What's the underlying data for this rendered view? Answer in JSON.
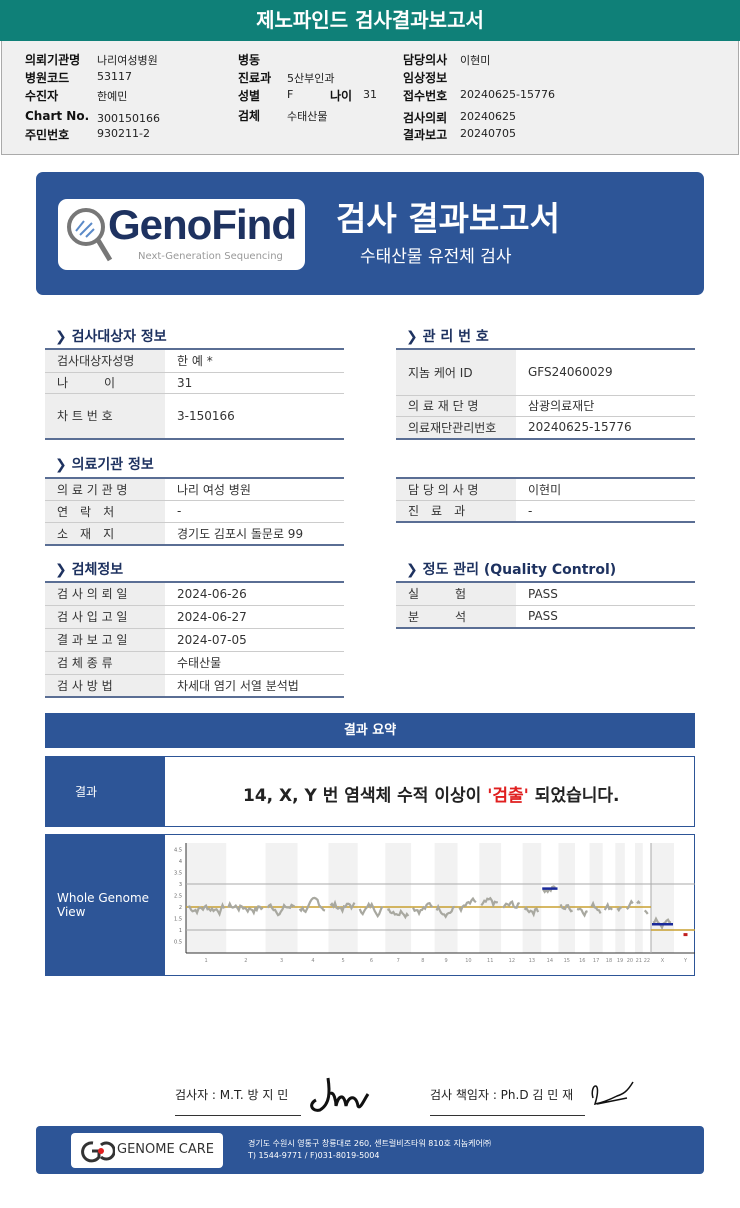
{
  "top_title": "제노파인드 검사결과보고서",
  "info": {
    "col1": [
      [
        "의뢰기관명",
        "나리여성병원"
      ],
      [
        "병원코드",
        "53117"
      ],
      [
        "수진자",
        "한예민"
      ],
      [
        "Chart No.",
        "300150166"
      ],
      [
        "주민번호",
        "930211-2"
      ]
    ],
    "col2": [
      [
        "병동",
        ""
      ],
      [
        "진료과",
        "5산부인과"
      ],
      [
        "성별",
        "F"
      ],
      [
        "검체",
        "수태산물"
      ]
    ],
    "age_label": "나이",
    "age_value": "31",
    "col3": [
      [
        "담당의사",
        "이현미"
      ],
      [
        "임상정보",
        ""
      ],
      [
        "접수번호",
        "20240625-15776"
      ],
      [
        "검사의뢰",
        "20240625"
      ],
      [
        "결과보고",
        "20240705"
      ]
    ]
  },
  "banner": {
    "logo": "GenoFind",
    "logo_sub": "Next-Generation Sequencing",
    "title": "검사 결과보고서",
    "subtitle": "수태산물 유전체 검사"
  },
  "sections": {
    "subject": {
      "title": "검사대상자 정보",
      "rows": [
        [
          "검사대상자성명",
          "한 예 *"
        ],
        [
          "나　　　이",
          "31"
        ],
        [
          "차 트 번 호",
          "3-150166"
        ]
      ]
    },
    "mgmt": {
      "title": "관 리 번 호",
      "rows": [
        [
          "지놈  케어 ID",
          "GFS24060029"
        ],
        [
          "의 료 재 단 명",
          "삼광의료재단"
        ],
        [
          "의료재단관리번호",
          "20240625-15776"
        ]
      ]
    },
    "hospital": {
      "title": "의료기관  정보",
      "rows": [
        [
          "의 료 기 관 명",
          "나리 여성 병원"
        ],
        [
          "연　락　처",
          "-"
        ],
        [
          "소　재　지",
          "경기도 김포시 돌문로 99"
        ]
      ]
    },
    "doctor": {
      "rows": [
        [
          "담 당 의 사 명",
          "이현미"
        ],
        [
          "진　료　과",
          "-"
        ]
      ]
    },
    "specimen": {
      "title": "검체정보",
      "rows": [
        [
          "검 사 의 뢰 일",
          "2024-06-26"
        ],
        [
          "검 사 입 고 일",
          "2024-06-27"
        ],
        [
          "결 과 보 고 일",
          "2024-07-05"
        ],
        [
          "검 체 종 류",
          "수태산물"
        ],
        [
          "검 사 방 법",
          "차세대 염기 서열 분석법"
        ]
      ]
    },
    "qc": {
      "title": "정도  관리  (Quality Control)",
      "rows": [
        [
          "실　　　험",
          "PASS"
        ],
        [
          "분　　　석",
          "PASS"
        ]
      ]
    }
  },
  "summary": {
    "header": "결과 요약",
    "result_label": "결과",
    "result_pre": "14, X, Y 번 염색체 수적 이상이 ",
    "result_hl": "'검출'",
    "result_post": " 되었습니다.",
    "highlight_color": "#e02020",
    "genome_label": "Whole Genome View"
  },
  "chart_data": {
    "type": "line",
    "y_ticks": [
      0.5,
      1,
      1.5,
      2,
      2.5,
      3,
      3.5,
      4,
      4.5
    ],
    "ylim": [
      0,
      4.7
    ],
    "categories": [
      "1",
      "2",
      "3",
      "4",
      "5",
      "6",
      "7",
      "8",
      "9",
      "10",
      "11",
      "12",
      "13",
      "14",
      "15",
      "16",
      "17",
      "18",
      "19",
      "20",
      "21",
      "22",
      "X",
      "Y"
    ],
    "copy_number": [
      2,
      2,
      2,
      2,
      2,
      2,
      2,
      2,
      2,
      2,
      2,
      2,
      2,
      2.8,
      2,
      2,
      2,
      2,
      2,
      2,
      2,
      2,
      1.25,
      0.8
    ],
    "reference_lines": [
      1,
      3
    ],
    "baseline_autosome": 2,
    "baseline_sex": 1,
    "grid": false
  },
  "signatures": {
    "tester": "검사자 : M.T. 방 지 민",
    "director": "검사 책임자 : Ph.D 김 민 재"
  },
  "footer": {
    "logo": "GENOME CARE",
    "address": "경기도 수원시 영통구 창룡대로 260, 센트럴비즈타워 810호 지놈케어㈜",
    "phone": "T) 1544-9771 / F)031-8019-5004"
  },
  "colors": {
    "banner": "#2d5597",
    "topbar": "#0f8078",
    "segment": "#1a2a9a",
    "baseline": "#c8a030"
  }
}
